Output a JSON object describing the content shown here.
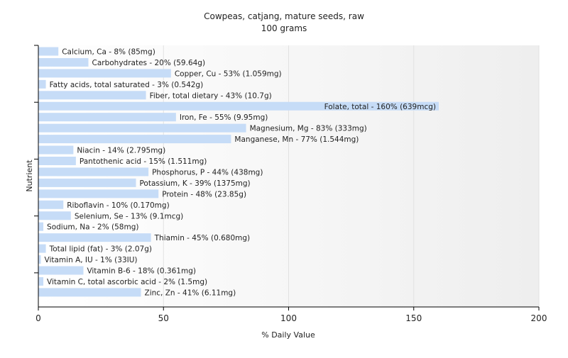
{
  "chart_data": {
    "type": "bar",
    "orientation": "horizontal",
    "title": "Cowpeas, catjang, mature seeds, raw",
    "subtitle": "100 grams",
    "xlabel": "% Daily Value",
    "ylabel": "Nutrient",
    "xlim": [
      0,
      200
    ],
    "xticks": [
      0,
      50,
      100,
      150,
      200
    ],
    "grid": true,
    "bar_color": "#c6dcf7",
    "bars": [
      {
        "label": "Calcium, Ca - 8% (85mg)",
        "value": 8
      },
      {
        "label": "Carbohydrates - 20% (59.64g)",
        "value": 20
      },
      {
        "label": "Copper, Cu - 53% (1.059mg)",
        "value": 53
      },
      {
        "label": "Fatty acids, total saturated - 3% (0.542g)",
        "value": 3
      },
      {
        "label": "Fiber, total dietary - 43% (10.7g)",
        "value": 43
      },
      {
        "label": "Folate, total - 160% (639mcg)",
        "value": 160
      },
      {
        "label": "Iron, Fe - 55% (9.95mg)",
        "value": 55
      },
      {
        "label": "Magnesium, Mg - 83% (333mg)",
        "value": 83
      },
      {
        "label": "Manganese, Mn - 77% (1.544mg)",
        "value": 77
      },
      {
        "label": "Niacin - 14% (2.795mg)",
        "value": 14
      },
      {
        "label": "Pantothenic acid - 15% (1.511mg)",
        "value": 15
      },
      {
        "label": "Phosphorus, P - 44% (438mg)",
        "value": 44
      },
      {
        "label": "Potassium, K - 39% (1375mg)",
        "value": 39
      },
      {
        "label": "Protein - 48% (23.85g)",
        "value": 48
      },
      {
        "label": "Riboflavin - 10% (0.170mg)",
        "value": 10
      },
      {
        "label": "Selenium, Se - 13% (9.1mcg)",
        "value": 13
      },
      {
        "label": "Sodium, Na - 2% (58mg)",
        "value": 2
      },
      {
        "label": "Thiamin - 45% (0.680mg)",
        "value": 45
      },
      {
        "label": "Total lipid (fat) - 3% (2.07g)",
        "value": 3
      },
      {
        "label": "Vitamin A, IU - 1% (33IU)",
        "value": 1
      },
      {
        "label": "Vitamin B-6 - 18% (0.361mg)",
        "value": 18
      },
      {
        "label": "Vitamin C, total ascorbic acid - 2% (1.5mg)",
        "value": 2
      },
      {
        "label": "Zinc, Zn - 41% (6.11mg)",
        "value": 41
      }
    ]
  }
}
